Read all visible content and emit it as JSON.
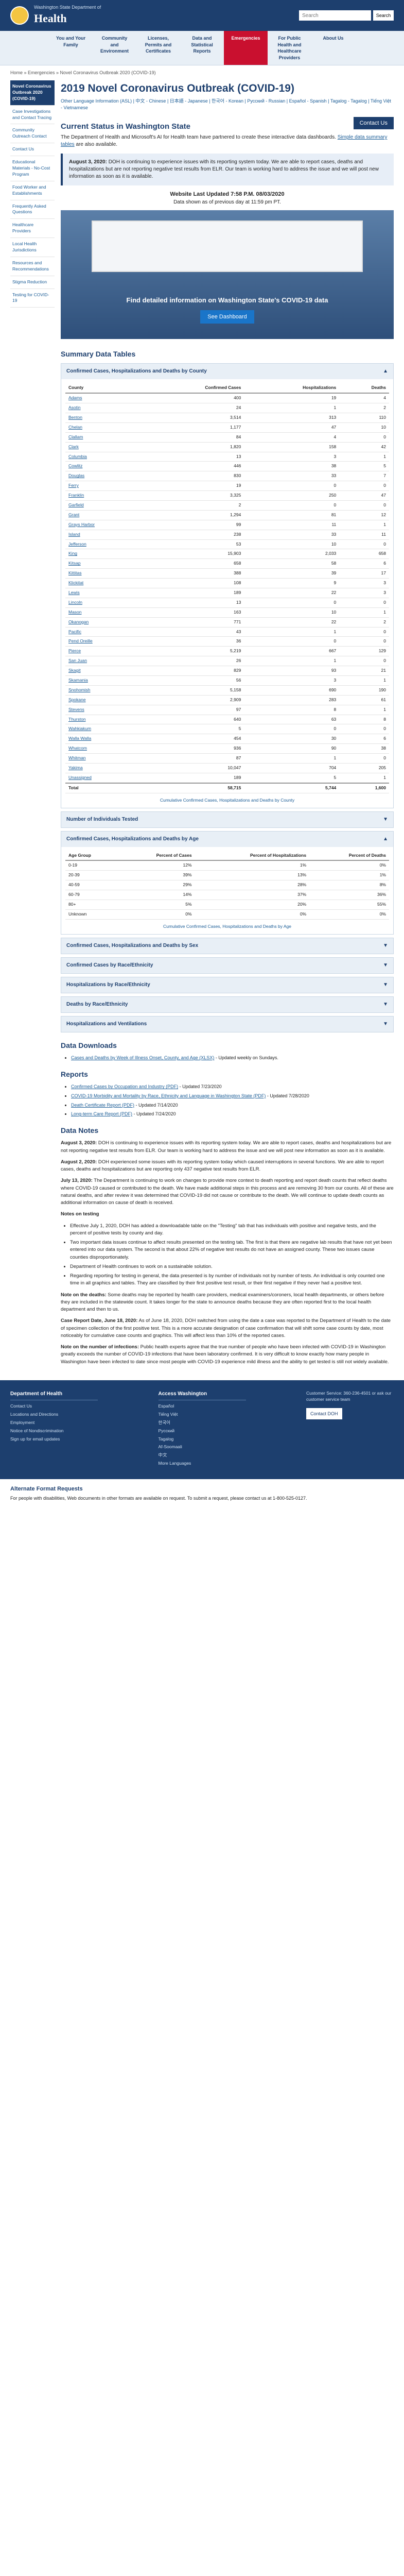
{
  "header": {
    "logo_small": "Washington State Department of",
    "logo_big": "Health",
    "search_placeholder": "Search",
    "search_button": "Search"
  },
  "nav": [
    {
      "label": "You and Your Family"
    },
    {
      "label": "Community and Environment"
    },
    {
      "label": "Licenses, Permits and Certificates"
    },
    {
      "label": "Data and Statistical Reports"
    },
    {
      "label": "Emergencies"
    },
    {
      "label": "For Public Health and Healthcare Providers"
    },
    {
      "label": "About Us"
    }
  ],
  "breadcrumb": "Home » Emergencies » Novel Coronavirus Outbreak 2020 (COVID-19)",
  "sidebar": [
    {
      "label": "Novel Coronavirus Outbreak 2020 (COVID-19)"
    },
    {
      "label": "Case Investigations and Contact Tracing"
    },
    {
      "label": "Community Outreach Contact"
    },
    {
      "label": "Contact Us"
    },
    {
      "label": "Educational Materials - No-Cost Program"
    },
    {
      "label": "Food Worker and Establishments"
    },
    {
      "label": "Frequently Asked Questions"
    },
    {
      "label": "Healthcare Providers"
    },
    {
      "label": "Local Health Jurisdictions"
    },
    {
      "label": "Resources and Recommendations"
    },
    {
      "label": "Stigma Reduction"
    },
    {
      "label": "Testing for COVID-19"
    }
  ],
  "page": {
    "title": "2019 Novel Coronavirus Outbreak (COVID-19)",
    "languages": "Other Language Information (ASL) | 中文 - Chinese | 日本語 - Japanese | 한국어 - Korean | Русский - Russian | Español - Spanish | Tagalog - Tagalog | Tiếng Việt - Vietnamese",
    "status_title": "Current Status in Washington State",
    "contact_button": "Contact Us",
    "intro": "The Department of Health and Microsoft's AI for Health team have partnered to create these interactive data dashboards.",
    "intro_link": "Simple data summary tables",
    "intro_suffix": " are also available.",
    "alert_date": "August 3, 2020:",
    "alert_text": " DOH is continuing to experience issues with its reporting system today. We are able to report cases, deaths and hospitalizations but are not reporting negative test results from ELR. Our team is working hard to address the issue and we will post new information as soon as it is available.",
    "update_title": "Website Last Updated 7:58 P.M. 08/03/2020",
    "update_sub": "Data shown as of previous day at 11:59 pm PT.",
    "dash_title": "Find detailed information on Washington State's COVID-19 data",
    "dash_button": "See Dashboard",
    "summary_title": "Summary Data Tables"
  },
  "county_table": {
    "heading": "Confirmed Cases, Hospitalizations and Deaths by County",
    "headers": [
      "County",
      "Confirmed Cases",
      "Hospitalizations",
      "Deaths"
    ],
    "rows": [
      [
        "Adams",
        "400",
        "19",
        "4"
      ],
      [
        "Asotin",
        "24",
        "1",
        "2"
      ],
      [
        "Benton",
        "3,514",
        "313",
        "110"
      ],
      [
        "Chelan",
        "1,177",
        "47",
        "10"
      ],
      [
        "Clallam",
        "84",
        "4",
        "0"
      ],
      [
        "Clark",
        "1,820",
        "158",
        "42"
      ],
      [
        "Columbia",
        "13",
        "3",
        "1"
      ],
      [
        "Cowlitz",
        "446",
        "38",
        "5"
      ],
      [
        "Douglas",
        "830",
        "33",
        "7"
      ],
      [
        "Ferry",
        "19",
        "0",
        "0"
      ],
      [
        "Franklin",
        "3,325",
        "250",
        "47"
      ],
      [
        "Garfield",
        "2",
        "0",
        "0"
      ],
      [
        "Grant",
        "1,294",
        "81",
        "12"
      ],
      [
        "Grays Harbor",
        "99",
        "11",
        "1"
      ],
      [
        "Island",
        "238",
        "33",
        "11"
      ],
      [
        "Jefferson",
        "53",
        "10",
        "0"
      ],
      [
        "King",
        "15,903",
        "2,033",
        "658"
      ],
      [
        "Kitsap",
        "658",
        "58",
        "6"
      ],
      [
        "Kittitas",
        "388",
        "39",
        "17"
      ],
      [
        "Klickitat",
        "108",
        "9",
        "3"
      ],
      [
        "Lewis",
        "189",
        "22",
        "3"
      ],
      [
        "Lincoln",
        "13",
        "0",
        "0"
      ],
      [
        "Mason",
        "163",
        "10",
        "1"
      ],
      [
        "Okanogan",
        "771",
        "22",
        "2"
      ],
      [
        "Pacific",
        "43",
        "1",
        "0"
      ],
      [
        "Pend Oreille",
        "36",
        "0",
        "0"
      ],
      [
        "Pierce",
        "5,219",
        "667",
        "129"
      ],
      [
        "San Juan",
        "26",
        "1",
        "0"
      ],
      [
        "Skagit",
        "829",
        "93",
        "21"
      ],
      [
        "Skamania",
        "56",
        "3",
        "1"
      ],
      [
        "Snohomish",
        "5,158",
        "690",
        "190"
      ],
      [
        "Spokane",
        "2,909",
        "283",
        "61"
      ],
      [
        "Stevens",
        "97",
        "8",
        "1"
      ],
      [
        "Thurston",
        "640",
        "63",
        "8"
      ],
      [
        "Wahkiakum",
        "5",
        "0",
        "0"
      ],
      [
        "Walla Walla",
        "454",
        "30",
        "6"
      ],
      [
        "Whatcom",
        "936",
        "90",
        "38"
      ],
      [
        "Whitman",
        "87",
        "1",
        "0"
      ],
      [
        "Yakima",
        "10,047",
        "704",
        "205"
      ],
      [
        "Unassigned",
        "189",
        "5",
        "1"
      ]
    ],
    "total": [
      "Total",
      "58,715",
      "5,744",
      "1,600"
    ],
    "caption": "Cumulative Confirmed Cases, Hospitalizations and Deaths by County"
  },
  "individuals_tested_heading": "Number of Individuals Tested",
  "age_table": {
    "heading": "Confirmed Cases, Hospitalizations and Deaths by Age",
    "headers": [
      "Age Group",
      "Percent of Cases",
      "Percent of Hospitalizations",
      "Percent of Deaths"
    ],
    "rows": [
      [
        "0-19",
        "12%",
        "1%",
        "0%"
      ],
      [
        "20-39",
        "39%",
        "13%",
        "1%"
      ],
      [
        "40-59",
        "29%",
        "28%",
        "8%"
      ],
      [
        "60-79",
        "14%",
        "37%",
        "36%"
      ],
      [
        "80+",
        "5%",
        "20%",
        "55%"
      ],
      [
        "Unknown",
        "0%",
        "0%",
        "0%"
      ]
    ],
    "caption": "Cumulative Confirmed Cases, Hospitalizations and Deaths by Age"
  },
  "collapsed_sections": [
    "Confirmed Cases, Hospitalizations and Deaths by Sex",
    "Confirmed Cases by Race/Ethnicity",
    "Hospitalizations by Race/Ethnicity",
    "Deaths by Race/Ethnicity",
    "Hospitalizations and Ventilations"
  ],
  "downloads": {
    "title": "Data Downloads",
    "items": [
      {
        "link": "Cases and Deaths by Week of Illness Onset, County, and Age (XLSX)",
        "suffix": " - Updated weekly on Sundays."
      }
    ]
  },
  "reports": {
    "title": "Reports",
    "items": [
      {
        "link": "Confirmed Cases by Occupation and Industry (PDF)",
        "suffix": " - Updated 7/23/2020"
      },
      {
        "link": "COVID-19 Morbidity and Mortality by Race, Ethnicity and Language in Washington State (PDF)",
        "suffix": " - Updated 7/28/2020"
      },
      {
        "link": "Death Certificate Report (PDF)",
        "suffix": " - Updated 7/14/2020"
      },
      {
        "link": "Long-term Care Report (PDF)",
        "suffix": " - Updated 7/24/2020"
      }
    ]
  },
  "notes": {
    "title": "Data Notes",
    "paragraphs": [
      {
        "date": "August 3, 2020:",
        "text": " DOH is continuing to experience issues with its reporting system today. We are able to report cases, deaths and hospitalizations but are not reporting negative test results from ELR. Our team is working hard to address the issue and we will post new information as soon as it is available."
      },
      {
        "date": "August 2, 2020:",
        "text": " DOH experienced some issues with its reporting system today which caused interruptions in several functions. We are able to report cases, deaths and hospitalizations but are reporting only 437 negative test results from ELR."
      },
      {
        "date": "July 13, 2020:",
        "text": " The Department is continuing to work on changes to provide more context to death reporting and report death counts that reflect deaths where COVID-19 caused or contributed to the death. We have made additional steps in this process and are removing 30 from our counts. All of these are natural deaths, and after review it was determined that COVID-19 did not cause or contribute to the death. We will continue to update death counts as additional information on cause of death is received."
      }
    ],
    "testing_title": "Notes on testing",
    "testing_items": [
      "Effective July 1, 2020, DOH has added a downloadable table on the \"Testing\" tab that has individuals with positive and negative tests, and the percent of positive tests by county and day.",
      "Two important data issues continue to affect results presented on the testing tab. The first is that there are negative lab results that have not yet been entered into our data system. The second is that about 22% of negative test results do not have an assigned county. These two issues cause counties disproportionately.",
      "Department of Health continues to work on a sustainable solution.",
      "Regarding reporting for testing in general, the data presented is by number of individuals not by number of tests. An individual is only counted one time in all graphics and tables. They are classified by their first positive test result, or their first negative if they never had a positive test."
    ],
    "deaths_para": {
      "label": "Note on the deaths:",
      "text": " Some deaths may be reported by health care providers, medical examiners/coroners, local health departments, or others before they are included in the statewide count. It takes longer for the state to announce deaths because they are often reported first to the local health department and then to us."
    },
    "cases_para": {
      "label": "Case Report Date, June 18, 2020:",
      "text": " As of June 18, 2020, DOH switched from using the date a case was reported to the Department of Health to the date of specimen collection of the first positive test. This is a more accurate designation of case confirmation that will shift some case counts by date, most noticeably for cumulative case counts and graphics. This will affect less than 10% of the reported cases."
    },
    "infections_para": {
      "label": "Note on the number of infections:",
      "text": " Public health experts agree that the true number of people who have been infected with COVID-19 in Washington greatly exceeds the number of COVID-19 infections that have been laboratory confirmed. It is very difficult to know exactly how many people in Washington have been infected to date since most people with COVID-19 experience mild illness and the ability to get tested is still not widely available."
    }
  },
  "footer": {
    "col1_title": "Department of Health",
    "col1_links": [
      "Contact Us",
      "Locations and Directions",
      "Employment",
      "Notice of Nondiscrimination",
      "Sign up for email updates"
    ],
    "col2_title": "Access Washington",
    "col2_links": [
      "Español",
      "Tiếng Việt",
      "한국어",
      "Русский",
      "Tagalog",
      "Af-Soomaali",
      "中文",
      "More Languages"
    ],
    "col3_text": "Customer Service: 360-236-4501 or ask our customer service team",
    "col3_button": "Contact DOH"
  },
  "alt_format": {
    "title": "Alternate Format Requests",
    "text": "For people with disabilities, Web documents in other formats are available on request. To submit a request, please contact us at 1-800-525-0127."
  }
}
